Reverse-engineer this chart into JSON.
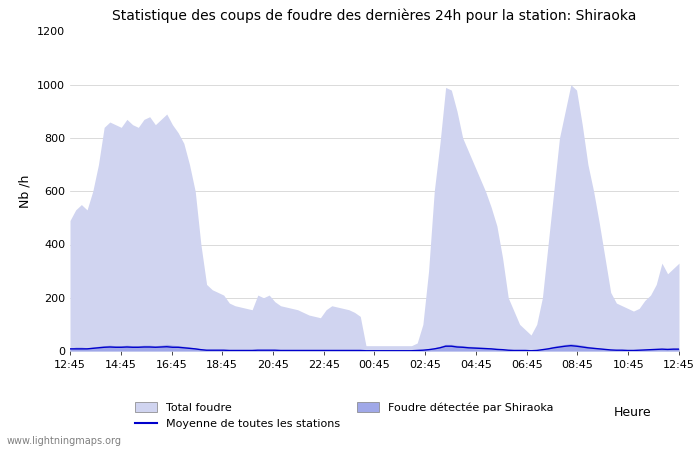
{
  "title": "Statistique des coups de foudre des dernières 24h pour la station: Shiraoka",
  "xlabel": "Heure",
  "ylabel": "Nb /h",
  "ylim": [
    0,
    1200
  ],
  "yticks": [
    0,
    200,
    400,
    600,
    800,
    1000,
    1200
  ],
  "xtick_labels": [
    "12:45",
    "14:45",
    "16:45",
    "18:45",
    "20:45",
    "22:45",
    "00:45",
    "02:45",
    "04:45",
    "06:45",
    "08:45",
    "10:45",
    "12:45"
  ],
  "watermark": "www.lightningmaps.org",
  "total_foudre_color": "#d0d4f0",
  "foudre_shiraoka_color": "#a0a8e8",
  "moyenne_color": "#0000cc",
  "total_foudre_values": [
    490,
    530,
    550,
    530,
    600,
    700,
    840,
    860,
    850,
    840,
    870,
    850,
    840,
    870,
    880,
    850,
    870,
    890,
    850,
    820,
    780,
    700,
    600,
    400,
    250,
    230,
    220,
    210,
    180,
    170,
    165,
    160,
    155,
    210,
    200,
    210,
    185,
    170,
    165,
    160,
    155,
    145,
    135,
    130,
    125,
    155,
    170,
    165,
    160,
    155,
    145,
    130,
    20,
    20,
    20,
    20,
    20,
    20,
    20,
    20,
    20,
    30,
    100,
    300,
    600,
    780,
    990,
    980,
    900,
    800,
    750,
    700,
    650,
    600,
    540,
    470,
    350,
    200,
    150,
    100,
    80,
    60,
    100,
    200,
    400,
    600,
    800,
    900,
    1000,
    980,
    850,
    700,
    600,
    480,
    350,
    220,
    180,
    170,
    160,
    150,
    160,
    190,
    210,
    250,
    330,
    290,
    310,
    330
  ],
  "foudre_shiraoka_values": [
    10,
    15,
    15,
    12,
    15,
    18,
    20,
    22,
    20,
    20,
    22,
    20,
    20,
    22,
    22,
    20,
    22,
    25,
    22,
    20,
    18,
    15,
    12,
    8,
    5,
    5,
    5,
    5,
    4,
    4,
    4,
    4,
    4,
    5,
    5,
    5,
    5,
    4,
    4,
    4,
    4,
    3,
    3,
    3,
    3,
    4,
    4,
    4,
    4,
    4,
    3,
    3,
    2,
    2,
    2,
    2,
    2,
    2,
    2,
    2,
    2,
    3,
    5,
    8,
    12,
    18,
    25,
    25,
    22,
    20,
    18,
    17,
    15,
    14,
    12,
    10,
    8,
    5,
    4,
    3,
    3,
    2,
    4,
    7,
    12,
    18,
    22,
    25,
    28,
    25,
    22,
    18,
    14,
    12,
    9,
    6,
    5,
    5,
    4,
    4,
    5,
    6,
    7,
    8,
    10,
    9,
    10,
    10
  ],
  "moyenne_values": [
    8,
    8,
    8,
    8,
    10,
    12,
    14,
    15,
    14,
    14,
    15,
    14,
    14,
    15,
    15,
    14,
    15,
    16,
    14,
    14,
    12,
    10,
    8,
    5,
    3,
    3,
    3,
    3,
    2,
    2,
    2,
    2,
    2,
    3,
    3,
    3,
    3,
    2,
    2,
    2,
    2,
    2,
    2,
    2,
    2,
    2,
    2,
    2,
    2,
    2,
    2,
    2,
    1,
    1,
    1,
    1,
    1,
    1,
    1,
    1,
    1,
    2,
    3,
    5,
    8,
    12,
    18,
    18,
    15,
    14,
    12,
    11,
    10,
    9,
    8,
    6,
    5,
    3,
    2,
    2,
    2,
    1,
    2,
    5,
    8,
    12,
    15,
    18,
    20,
    18,
    15,
    12,
    10,
    8,
    6,
    4,
    3,
    3,
    2,
    2,
    3,
    4,
    5,
    6,
    7,
    6,
    7,
    7
  ],
  "n_points": 108
}
